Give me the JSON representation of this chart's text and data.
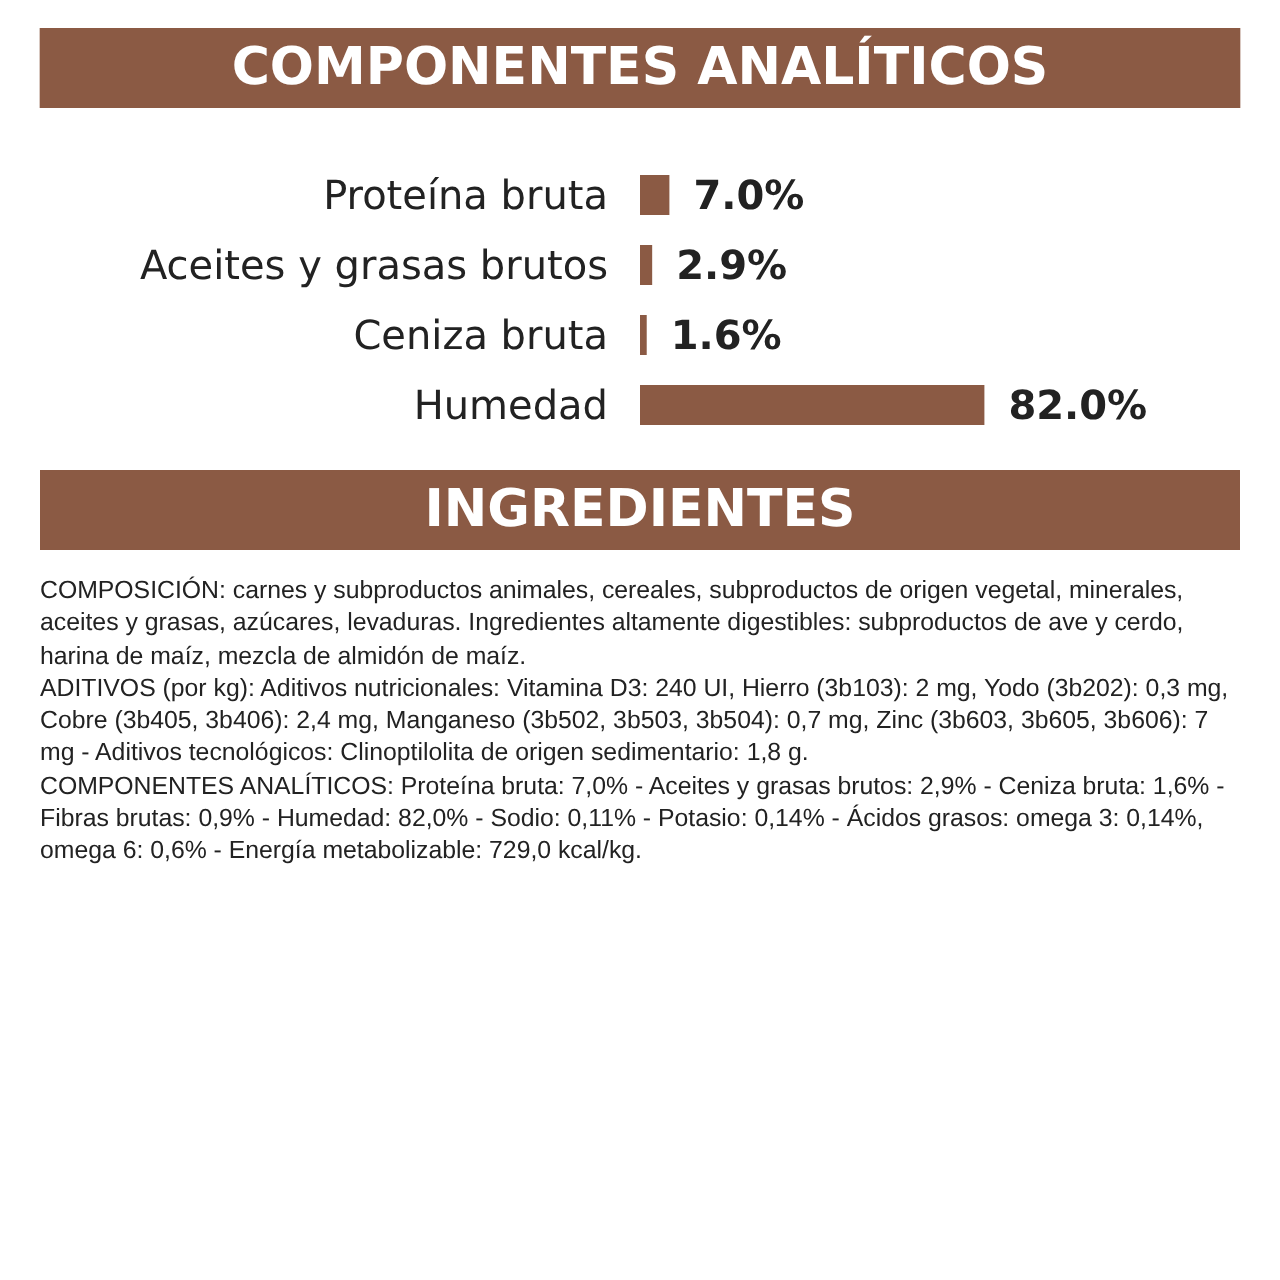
{
  "chart_data": {
    "type": "bar",
    "orientation": "horizontal",
    "title": "COMPONENTES ANALÍTICOS",
    "categories": [
      "Proteína bruta",
      "Aceites y grasas brutos",
      "Ceniza bruta",
      "Humedad"
    ],
    "values": [
      7.0,
      2.9,
      1.6,
      82.0
    ],
    "value_labels": [
      "7.0%",
      "2.9%",
      "1.6%",
      "82.0%"
    ],
    "color": "#8b5a44",
    "annotations": [
      "INGREDIENTES",
      "COMPOSICIÓN: carnes y subproductos animales, cereales, subproductos de origen vegetal, minerales, aceites y grasas, azúcares, levaduras. Ingredientes altamente digestibles: subproductos de ave y cerdo, harina de maíz, mezcla de almidón de maíz.",
      "ADITIVOS (por kg): Aditivos nutricionales: Vitamina D3: 240 UI, Hierro (3b103): 2 mg, Yodo (3b202): 0,3 mg, Cobre (3b405, 3b406): 2,4 mg, Manganeso (3b502, 3b503, 3b504): 0,7 mg, Zinc (3b603, 3b605, 3b606): 7 mg - Aditivos tecnológicos: Clinoptilolita de origen sedimentario: 1,8 g.",
      "COMPONENTES ANALÍTICOS: Proteína bruta: 7,0% - Aceites y grasas brutos: 2,9% - Ceniza bruta: 1,6% - Fibras brutas: 0,9% - Humedad: 82,0% - Sodio: 0,11% - Potasio: 0,14% - Ácidos grasos: omega 3: 0,14%, omega 6: 0,6% - Energía metabolizable: 729,0 kcal/kg."
    ],
    "data_labels": false
  }
}
